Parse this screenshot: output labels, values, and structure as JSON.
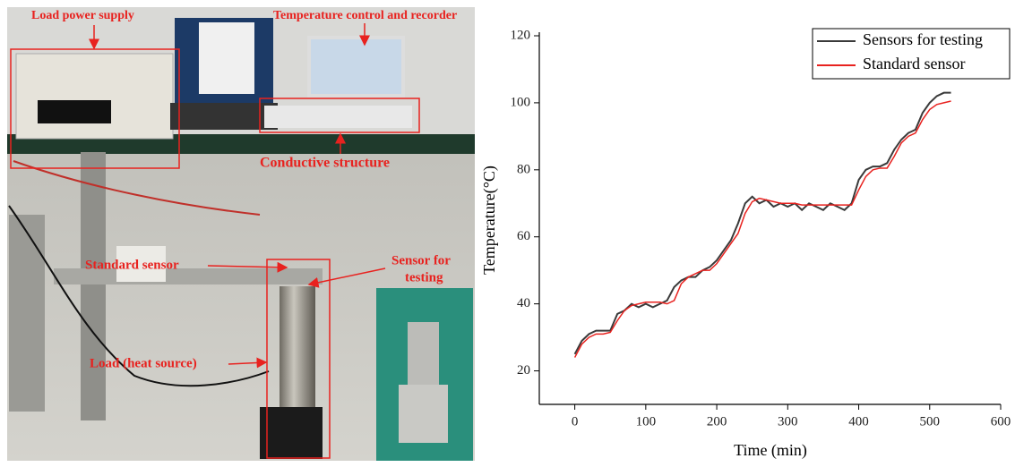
{
  "photo_labels": {
    "power_supply": "Load power supply",
    "recorder": "Temperature control and recorder",
    "conductive": "Conductive structure",
    "standard": "Standard sensor",
    "testing": [
      "Sensor for",
      "testing"
    ],
    "load": "Load (heat source)"
  },
  "chart_data": {
    "type": "line",
    "x_label": "Time (min)",
    "y_label": "Temperature(°C)",
    "x": [
      0,
      10,
      20,
      30,
      40,
      50,
      60,
      70,
      80,
      90,
      100,
      110,
      120,
      130,
      140,
      150,
      160,
      170,
      180,
      190,
      200,
      210,
      220,
      230,
      240,
      250,
      260,
      270,
      280,
      290,
      300,
      310,
      320,
      330,
      340,
      350,
      360,
      370,
      380,
      390,
      400,
      410,
      420,
      430,
      440,
      450,
      460,
      470,
      480,
      490,
      500,
      510,
      520,
      530
    ],
    "series": [
      {
        "name": "Sensors for testing",
        "color": "#3a3a3a",
        "values": [
          25,
          29,
          31,
          32,
          32,
          32,
          37,
          38,
          40,
          39,
          40,
          39,
          40,
          41,
          45,
          47,
          48,
          48,
          50,
          51,
          53,
          56,
          59,
          64,
          70,
          72,
          70,
          71,
          69,
          70,
          69,
          70,
          68,
          70,
          69,
          68,
          70,
          69,
          68,
          70,
          77,
          80,
          81,
          81,
          82,
          86,
          89,
          91,
          92,
          97,
          100,
          102,
          103,
          103
        ]
      },
      {
        "name": "Standard sensor",
        "color": "#e8221f",
        "values": [
          24,
          28,
          30,
          31,
          31,
          31.5,
          35,
          38,
          39.5,
          40,
          40.5,
          40.5,
          40.5,
          40,
          41,
          46,
          48,
          49,
          50,
          50,
          52,
          55,
          58,
          61,
          67,
          70.5,
          71.5,
          71,
          70.5,
          70,
          70,
          70,
          69.5,
          69.5,
          69.5,
          69.5,
          69.5,
          69.5,
          69.5,
          69.5,
          74,
          78,
          80,
          80.5,
          80.5,
          84,
          88,
          90,
          91,
          95,
          98,
          99.5,
          100,
          100.5
        ]
      }
    ],
    "xlim": [
      -50,
      600
    ],
    "xticks": [
      0,
      100,
      200,
      300,
      400,
      500,
      600
    ],
    "ylim": [
      10,
      120
    ],
    "yticks": [
      20,
      40,
      60,
      80,
      100,
      120
    ],
    "legend": "top-right"
  }
}
